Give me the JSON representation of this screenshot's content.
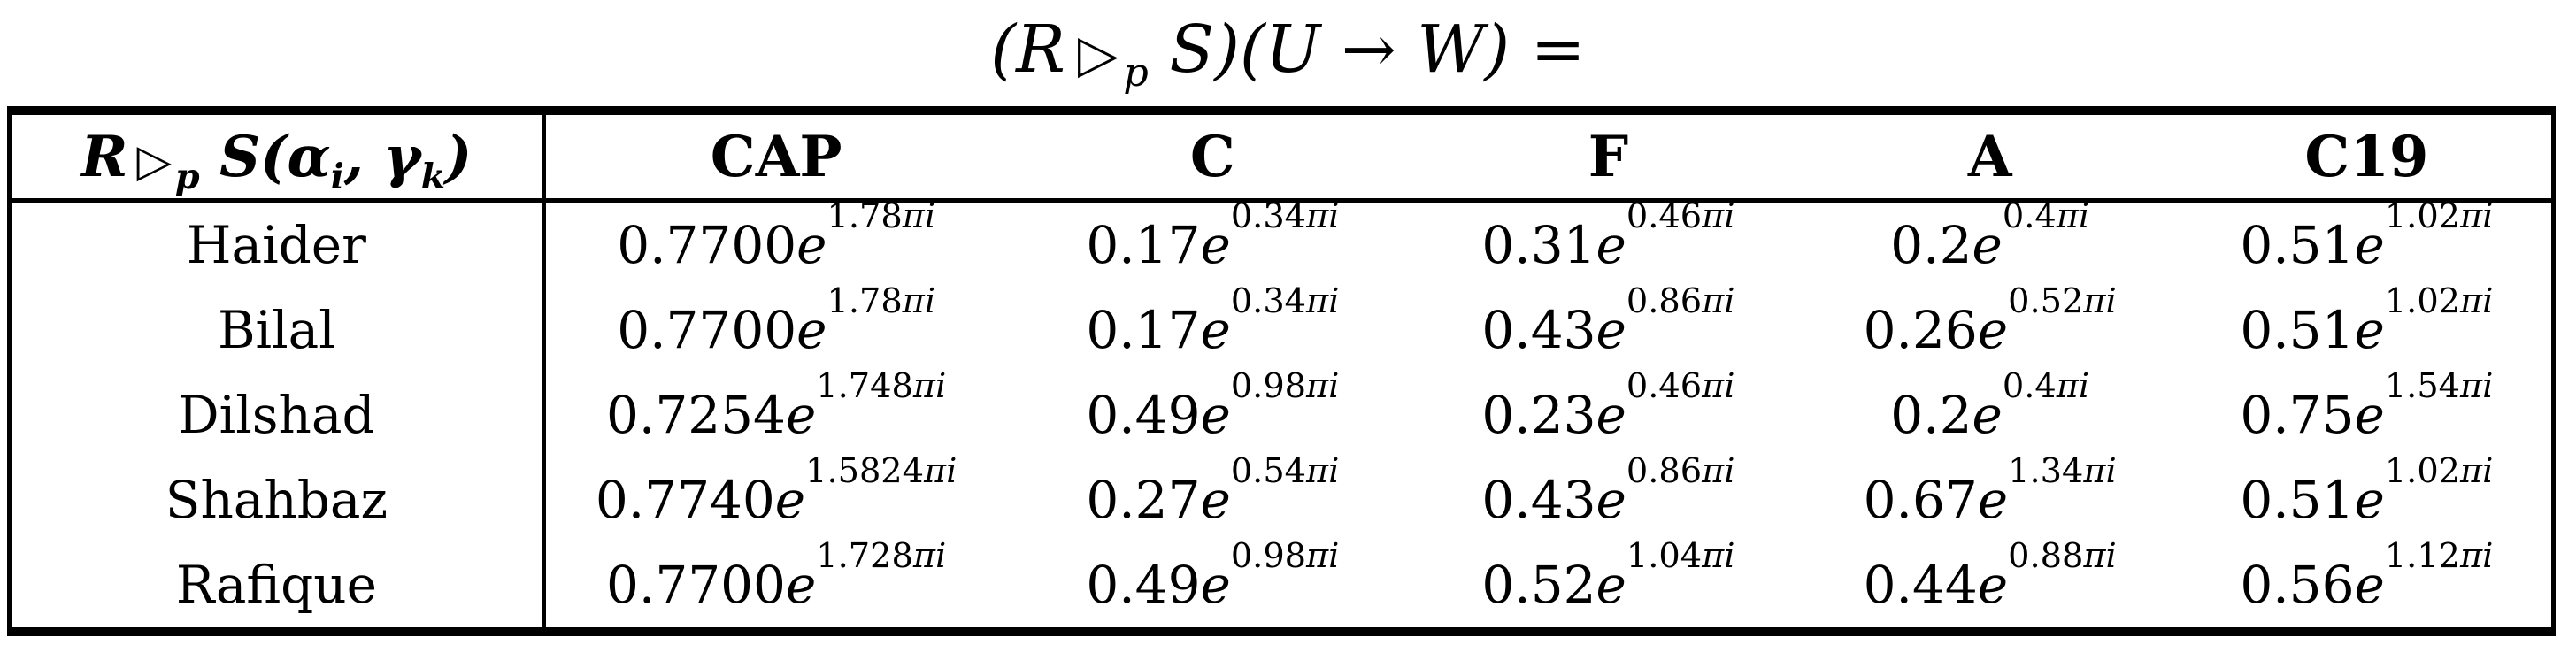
{
  "page": {
    "background": "#ffffff",
    "text_color": "#000000"
  },
  "title": {
    "part1": "(R",
    "operator": "▷",
    "operator_subscript": "p",
    "part2": "S)(U → W) ="
  },
  "table": {
    "corner": {
      "r": "R",
      "op": "▷",
      "op_sub": "p",
      "s": "S(",
      "alpha": "α",
      "alpha_sub": "i",
      "comma": ", ",
      "gamma": "γ",
      "gamma_sub": "k",
      "close": ")"
    },
    "columns": [
      "CAP",
      "C",
      "F",
      "A",
      "C19"
    ],
    "notation": {
      "exp_base": "e",
      "pi_suffix": "πi"
    },
    "rows": [
      {
        "name": "Haider",
        "values": [
          {
            "m": "0.7700",
            "p": "1.78"
          },
          {
            "m": "0.17",
            "p": "0.34"
          },
          {
            "m": "0.31",
            "p": "0.46"
          },
          {
            "m": "0.2",
            "p": "0.4"
          },
          {
            "m": "0.51",
            "p": "1.02"
          }
        ]
      },
      {
        "name": "Bilal",
        "values": [
          {
            "m": "0.7700",
            "p": "1.78"
          },
          {
            "m": "0.17",
            "p": "0.34"
          },
          {
            "m": "0.43",
            "p": "0.86"
          },
          {
            "m": "0.26",
            "p": "0.52"
          },
          {
            "m": "0.51",
            "p": "1.02"
          }
        ]
      },
      {
        "name": "Dilshad",
        "values": [
          {
            "m": "0.7254",
            "p": "1.748"
          },
          {
            "m": "0.49",
            "p": "0.98"
          },
          {
            "m": "0.23",
            "p": "0.46"
          },
          {
            "m": "0.2",
            "p": "0.4"
          },
          {
            "m": "0.75",
            "p": "1.54"
          }
        ]
      },
      {
        "name": "Shahbaz",
        "values": [
          {
            "m": "0.7740",
            "p": "1.5824"
          },
          {
            "m": "0.27",
            "p": "0.54"
          },
          {
            "m": "0.43",
            "p": "0.86"
          },
          {
            "m": "0.67",
            "p": "1.34"
          },
          {
            "m": "0.51",
            "p": "1.02"
          }
        ]
      },
      {
        "name": "Rafique",
        "values": [
          {
            "m": "0.7700",
            "p": "1.728"
          },
          {
            "m": "0.49",
            "p": "0.98"
          },
          {
            "m": "0.52",
            "p": "1.04"
          },
          {
            "m": "0.44",
            "p": "0.88"
          },
          {
            "m": "0.56",
            "p": "1.12"
          }
        ]
      }
    ]
  }
}
